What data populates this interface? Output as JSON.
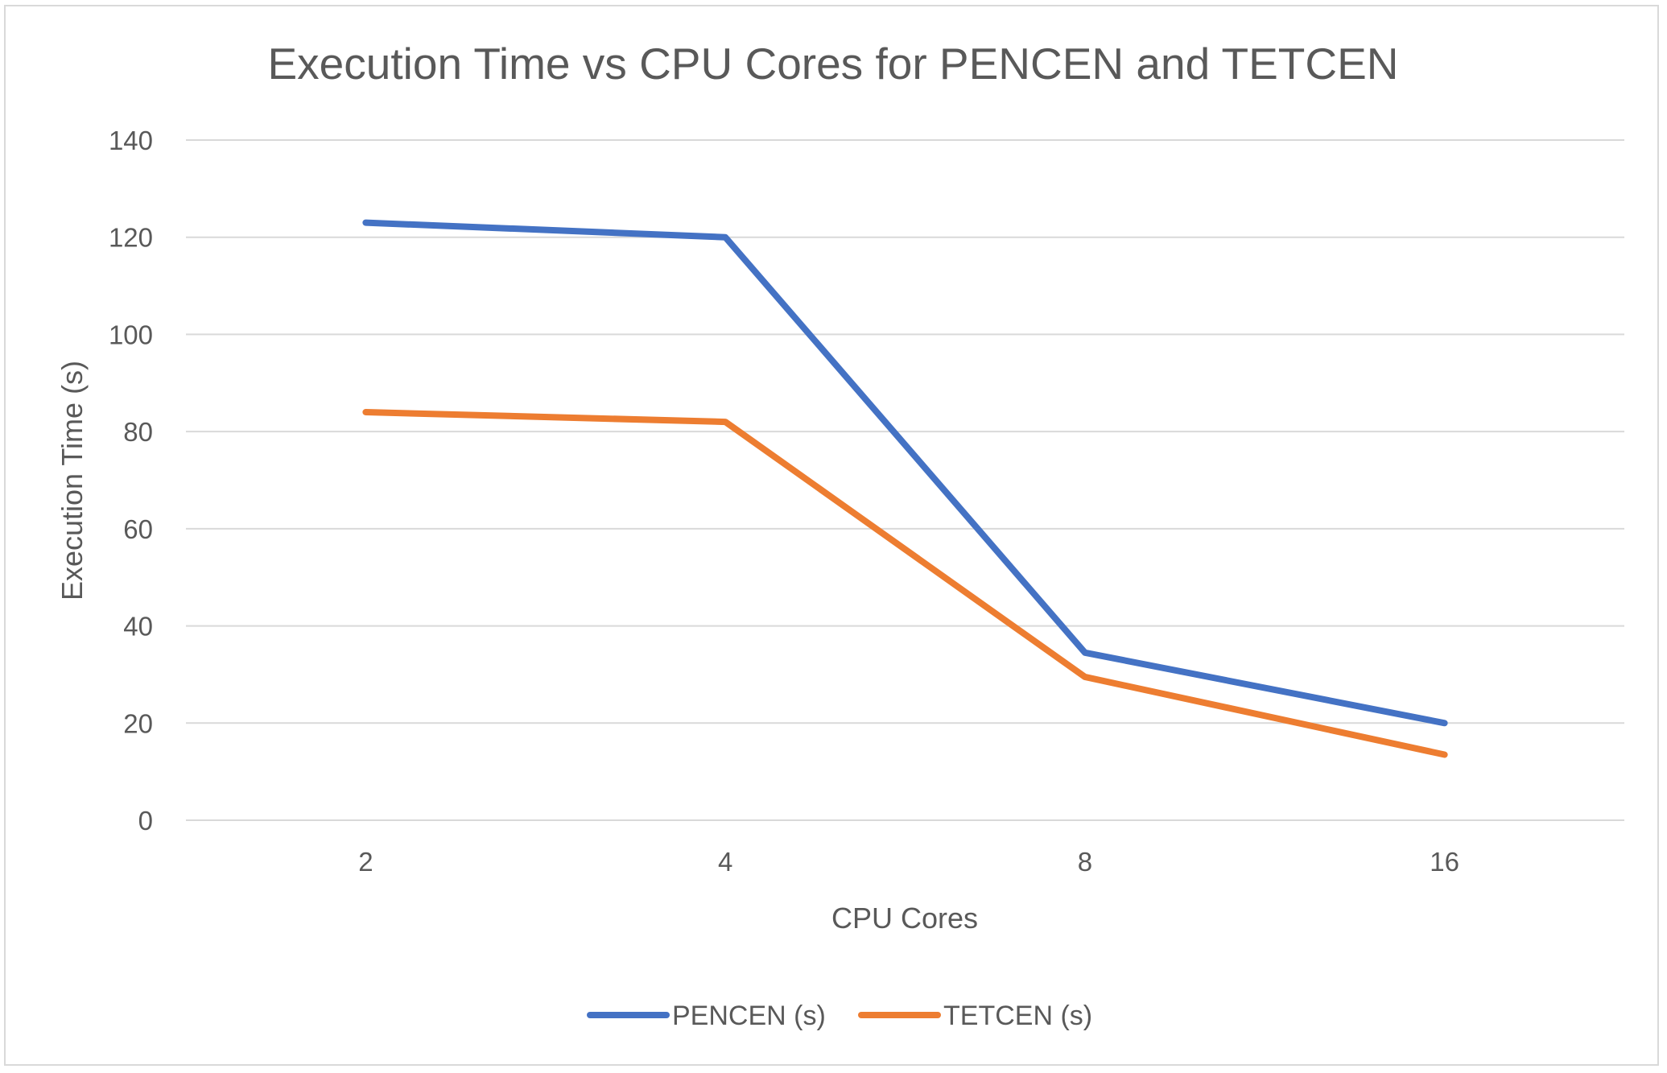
{
  "chart_data": {
    "type": "line",
    "title": "Execution Time vs CPU Cores for PENCEN and TETCEN",
    "xlabel": "CPU Cores",
    "ylabel": "Execution Time (s)",
    "categories": [
      "2",
      "4",
      "8",
      "16"
    ],
    "ylim": [
      0,
      140
    ],
    "yticks": [
      0,
      20,
      40,
      60,
      80,
      100,
      120,
      140
    ],
    "grid": true,
    "legend_position": "bottom",
    "series": [
      {
        "name": "PENCEN (s)",
        "color": "#4472c4",
        "values": [
          123,
          120,
          34.5,
          20
        ]
      },
      {
        "name": "TETCEN (s)",
        "color": "#ed7d31",
        "values": [
          84,
          82,
          29.5,
          13.5
        ]
      }
    ]
  }
}
